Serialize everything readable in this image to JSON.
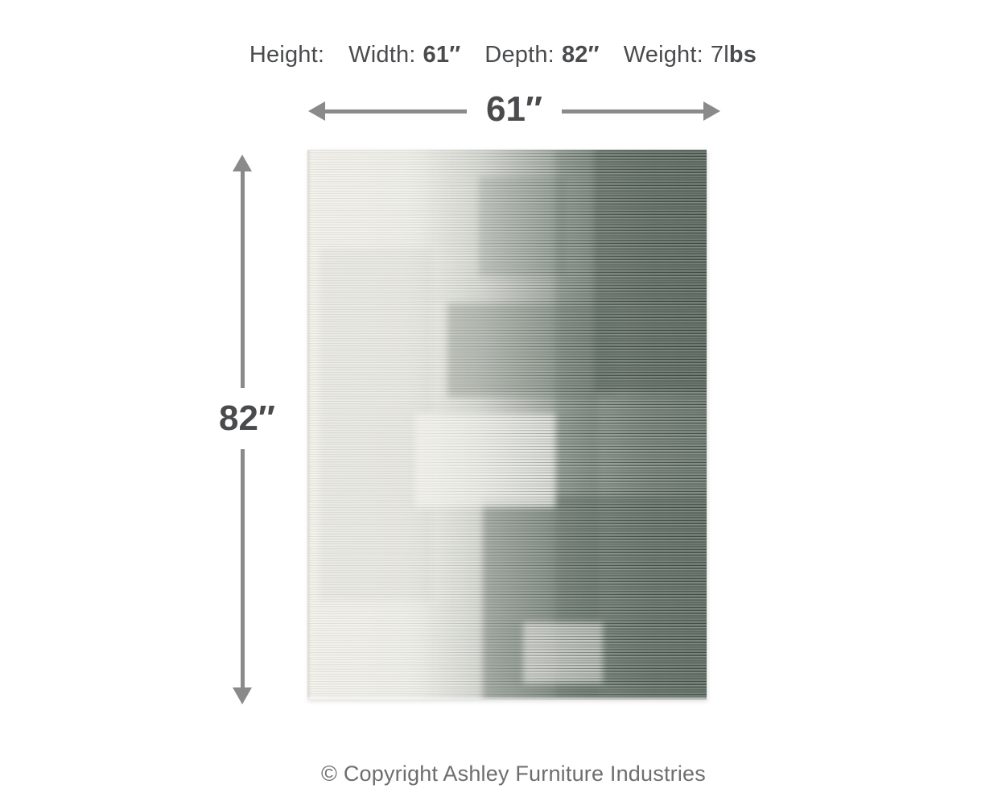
{
  "header": {
    "height_label": "Height:",
    "width_label": "Width:",
    "width_value": "61″",
    "depth_label": "Depth:",
    "depth_value": "82″",
    "weight_label": "Weight:",
    "weight_value": "7l",
    "weight_unit_bold": "bs"
  },
  "arrows": {
    "width_label": "61″",
    "height_label": "82″"
  },
  "footer": {
    "copyright_text": "© Copyright Ashley Furniture Industries"
  },
  "colors": {
    "text_dark": "#4a4b4d",
    "arrow_gray": "#8a8a8a",
    "copyright_gray": "#6e6e6e",
    "rug_cream": "#f5f4ef",
    "rug_green_dark": "#5f6e66"
  }
}
